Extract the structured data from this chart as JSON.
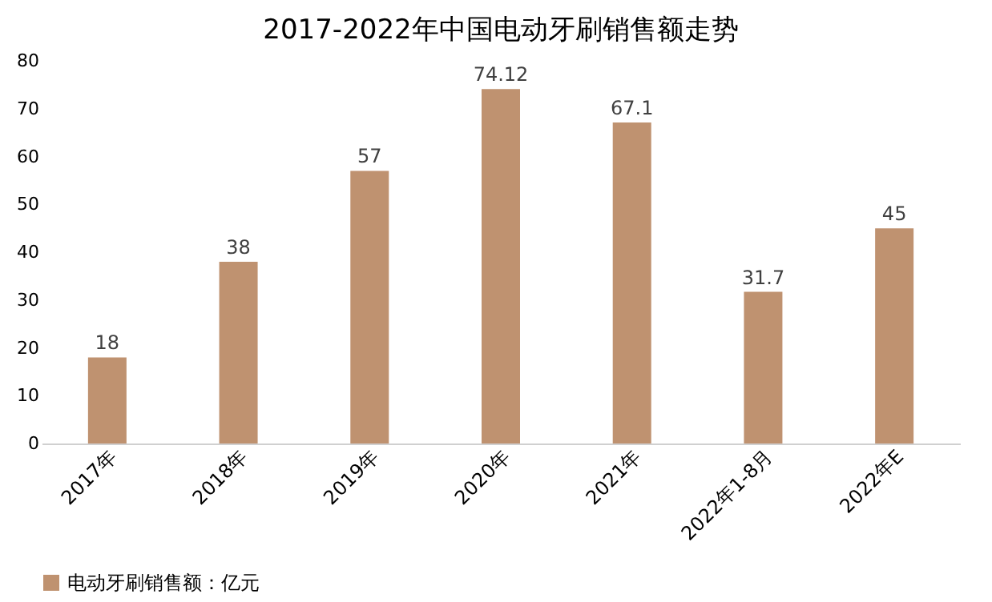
{
  "chart_data": {
    "type": "bar",
    "title": "2017-2022年中国电动牙刷销售额走势",
    "categories": [
      "2017年",
      "2018年",
      "2019年",
      "2020年",
      "2021年",
      "2022年1-8月",
      "2022年E"
    ],
    "series": [
      {
        "name": "电动牙刷销售额：亿元",
        "color": "#bf9270",
        "values": [
          18,
          38,
          57,
          74.12,
          67.1,
          31.7,
          45
        ]
      }
    ],
    "ylim": [
      0,
      80
    ],
    "yticks": [
      0,
      10,
      20,
      30,
      40,
      50,
      60,
      70,
      80
    ],
    "grid": false,
    "legend": "bottom",
    "data_labels": true
  }
}
